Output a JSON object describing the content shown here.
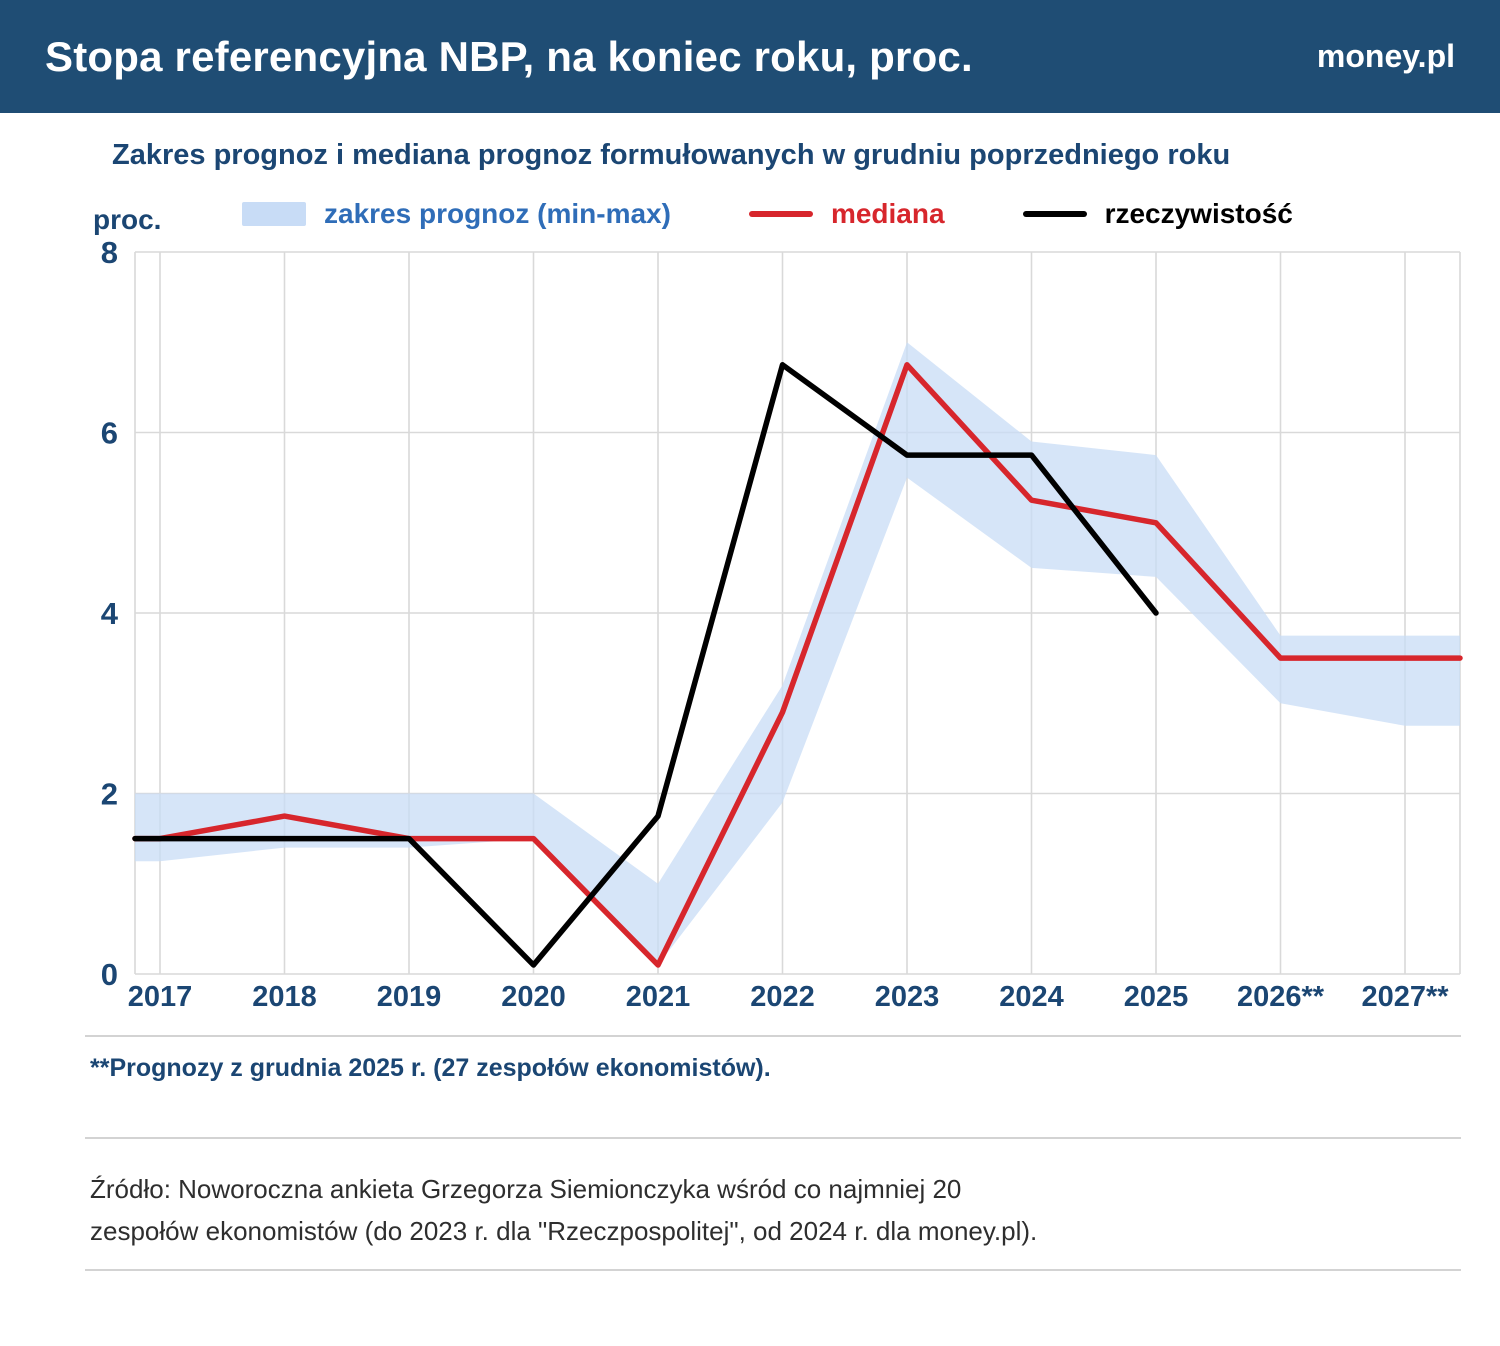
{
  "header": {
    "title": "Stopa referencyjna NBP, na koniec roku, proc.",
    "brand": "money.pl"
  },
  "subtitle": "Zakres prognoz i mediana prognoz formułowanych w grudniu poprzedniego roku",
  "unit_label": "proc.",
  "legend": {
    "band_label": "zakres prognoz (min-max)",
    "median_label": "mediana",
    "actual_label": "rzeczywistość"
  },
  "footnote": "**Prognozy z grudnia 2025 r. (27 zespołów ekonomistów).",
  "source_lines": {
    "line1": "Źródło: Noworoczna ankieta Grzegorza Siemionczyka wśród co najmniej 20",
    "line2": "zespołów ekonomistów (do  2023 r. dla \"Rzeczpospolitej\", od 2024 r. dla money.pl)."
  },
  "colors": {
    "header_bg": "#1f4d74",
    "navy_text": "#1b4673",
    "band_fill": "#c8dcf6",
    "median_line": "#d7262c",
    "actual_line": "#000000",
    "grid": "#d9d9d9",
    "legend_band_text": "#2f6db8"
  },
  "chart_data": {
    "type": "line",
    "title": "Zakres prognoz i mediana prognoz formułowanych w grudniu poprzedniego roku",
    "xlabel": "",
    "ylabel": "proc.",
    "ylim": [
      0,
      8
    ],
    "yticks": [
      0,
      2,
      4,
      6,
      8
    ],
    "grid": true,
    "legend_position": "top",
    "categories": [
      "2017",
      "2018",
      "2019",
      "2020",
      "2021",
      "2022",
      "2023",
      "2024",
      "2025",
      "2026**",
      "2027**"
    ],
    "band": {
      "name": "zakres prognoz (min-max)",
      "min": [
        1.25,
        1.4,
        1.4,
        1.5,
        0.1,
        1.9,
        5.5,
        4.5,
        4.4,
        3.0,
        2.75
      ],
      "max": [
        2.0,
        2.0,
        2.0,
        2.0,
        1.0,
        3.2,
        7.0,
        5.9,
        5.75,
        3.75,
        3.75
      ]
    },
    "series": [
      {
        "name": "mediana",
        "values": [
          1.5,
          1.75,
          1.5,
          1.5,
          0.1,
          2.9,
          6.75,
          5.25,
          5.0,
          3.5,
          3.5
        ]
      },
      {
        "name": "rzeczywistość",
        "values": [
          1.5,
          1.5,
          1.5,
          0.1,
          1.75,
          6.75,
          5.75,
          5.75,
          4.0,
          null,
          null
        ]
      }
    ]
  }
}
